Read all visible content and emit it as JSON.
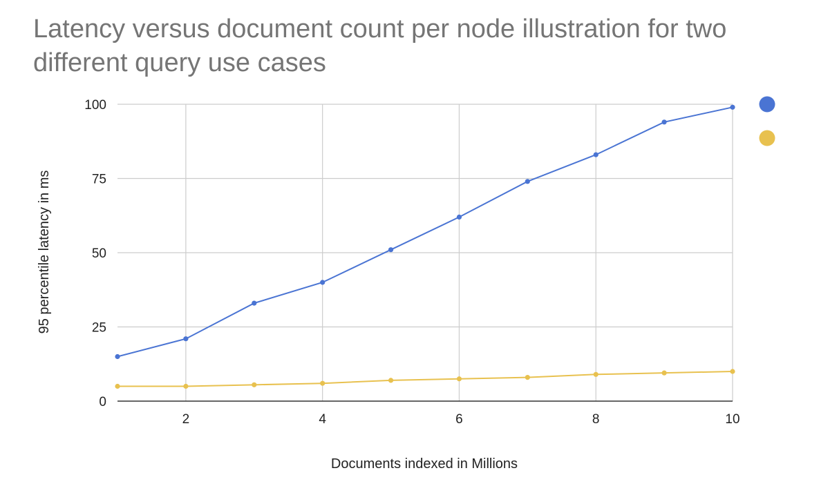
{
  "chart_data": {
    "type": "line",
    "title": "Latency versus document count per node illustration for two different query use cases",
    "xlabel": "Documents indexed in Millions",
    "ylabel": "95 percentile latency in ms",
    "xlim": [
      1,
      10
    ],
    "ylim": [
      0,
      100
    ],
    "x_ticks": [
      2,
      4,
      6,
      8,
      10
    ],
    "y_ticks": [
      0,
      25,
      50,
      75,
      100
    ],
    "grid": true,
    "legend_position": "right",
    "x": [
      1,
      2,
      3,
      4,
      5,
      6,
      7,
      8,
      9,
      10
    ],
    "series": [
      {
        "color": "#4a74d3",
        "values": [
          15,
          21,
          33,
          40,
          51,
          62,
          74,
          83,
          94,
          99
        ]
      },
      {
        "color": "#e8c14f",
        "values": [
          5,
          5,
          5.5,
          6,
          7,
          7.5,
          8,
          9,
          9.5,
          10
        ]
      }
    ]
  }
}
